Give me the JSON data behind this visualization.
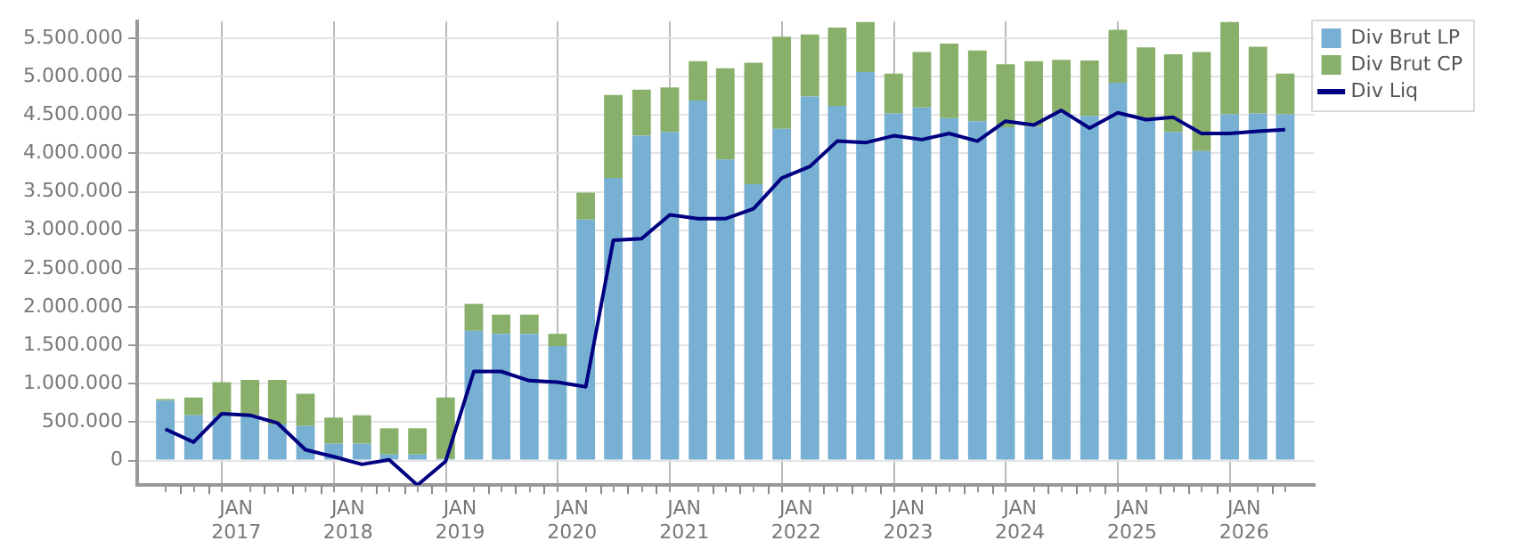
{
  "chart_data": {
    "type": "bar",
    "stacked": true,
    "grid": true,
    "legend": "top right",
    "x": [
      "2016-05-15",
      "2016-08-15",
      "2016-11-15",
      "2017-02-15",
      "2017-05-15",
      "2017-08-15",
      "2017-11-15",
      "2018-02-15",
      "2018-05-15",
      "2018-08-15",
      "2018-11-15",
      "2019-02-15",
      "2019-05-15",
      "2019-08-15",
      "2019-11-15",
      "2020-02-15",
      "2020-05-15",
      "2020-08-15",
      "2020-11-15",
      "2021-02-15",
      "2021-05-15",
      "2021-08-15",
      "2021-11-15",
      "2022-02-15",
      "2022-05-15",
      "2022-08-15",
      "2022-11-15",
      "2023-02-15",
      "2023-05-15",
      "2023-08-15",
      "2023-11-15",
      "2024-02-15",
      "2024-05-15",
      "2024-08-15",
      "2024-11-15",
      "2025-02-15",
      "2025-05-15",
      "2025-08-15",
      "2025-11-15",
      "2026-02-15",
      "2026-05-15"
    ],
    "series": [
      {
        "name": "Div Brut LP",
        "color": "#77b0d3",
        "values": [
          780000,
          590000,
          580000,
          590000,
          470000,
          450000,
          220000,
          220000,
          80000,
          80000,
          20000,
          1690000,
          1650000,
          1650000,
          1490000,
          3140000,
          3680000,
          4230000,
          4280000,
          4690000,
          3920000,
          3600000,
          4320000,
          4740000,
          4620000,
          5060000,
          4520000,
          4600000,
          4460000,
          4420000,
          4340000,
          4350000,
          4520000,
          4490000,
          4920000,
          4460000,
          4280000,
          4030000,
          4510000,
          4520000,
          4510000
        ]
      },
      {
        "name": "Div Brut CP",
        "color": "#88b06a",
        "values": [
          20000,
          230000,
          440000,
          460000,
          580000,
          420000,
          340000,
          370000,
          340000,
          340000,
          800000,
          350000,
          250000,
          250000,
          160000,
          350000,
          1080000,
          600000,
          580000,
          510000,
          1190000,
          1580000,
          1200000,
          810000,
          1020000,
          650000,
          520000,
          720000,
          970000,
          920000,
          820000,
          850000,
          700000,
          720000,
          690000,
          920000,
          1010000,
          1290000,
          1200000,
          870000,
          530000
        ]
      },
      {
        "name": "Div Liq",
        "type": "line",
        "color": "#000080",
        "values": [
          410000,
          240000,
          610000,
          590000,
          490000,
          140000,
          50000,
          -50000,
          10000,
          -320000,
          -10000,
          1160000,
          1160000,
          1040000,
          1020000,
          960000,
          2870000,
          2890000,
          3200000,
          3150000,
          3150000,
          3280000,
          3680000,
          3830000,
          4160000,
          4140000,
          4230000,
          4180000,
          4260000,
          4160000,
          4420000,
          4370000,
          4560000,
          4330000,
          4530000,
          4440000,
          4470000,
          4260000,
          4260000,
          4290000,
          4310000
        ]
      }
    ],
    "xlim": [
      "2016-04-01",
      "2026-07-01"
    ],
    "xticks": [
      {
        "value": "2016-07-01",
        "label": null
      },
      {
        "value": "2016-10-01",
        "label": null
      },
      {
        "value": "2017-01-01",
        "label": "JAN 2017"
      },
      {
        "value": "2017-04-01",
        "label": null
      },
      {
        "value": "2017-07-01",
        "label": null
      },
      {
        "value": "2017-10-01",
        "label": null
      },
      {
        "value": "2018-01-01",
        "label": "JAN 2018"
      },
      {
        "value": "2018-04-01",
        "label": null
      },
      {
        "value": "2018-07-01",
        "label": null
      },
      {
        "value": "2018-10-01",
        "label": null
      },
      {
        "value": "2019-01-01",
        "label": "JAN 2019"
      },
      {
        "value": "2019-04-01",
        "label": null
      },
      {
        "value": "2019-07-01",
        "label": null
      },
      {
        "value": "2019-10-01",
        "label": null
      },
      {
        "value": "2020-01-01",
        "label": "JAN 2020"
      },
      {
        "value": "2020-04-01",
        "label": null
      },
      {
        "value": "2020-07-01",
        "label": null
      },
      {
        "value": "2020-10-01",
        "label": null
      },
      {
        "value": "2021-01-01",
        "label": "JAN 2021"
      },
      {
        "value": "2021-04-01",
        "label": null
      },
      {
        "value": "2021-07-01",
        "label": null
      },
      {
        "value": "2021-10-01",
        "label": null
      },
      {
        "value": "2022-01-01",
        "label": "JAN 2022"
      },
      {
        "value": "2022-04-01",
        "label": null
      },
      {
        "value": "2022-07-01",
        "label": null
      },
      {
        "value": "2022-10-01",
        "label": null
      },
      {
        "value": "2023-01-01",
        "label": "JAN 2023"
      },
      {
        "value": "2023-04-01",
        "label": null
      },
      {
        "value": "2023-07-01",
        "label": null
      },
      {
        "value": "2023-10-01",
        "label": null
      },
      {
        "value": "2024-01-01",
        "label": "JAN 2024"
      },
      {
        "value": "2024-04-01",
        "label": null
      },
      {
        "value": "2024-07-01",
        "label": null
      },
      {
        "value": "2024-10-01",
        "label": null
      },
      {
        "value": "2025-01-01",
        "label": "JAN 2025"
      },
      {
        "value": "2025-04-01",
        "label": null
      },
      {
        "value": "2025-07-01",
        "label": null
      },
      {
        "value": "2025-10-01",
        "label": null
      },
      {
        "value": "2026-01-01",
        "label": "JAN 2026"
      },
      {
        "value": "2026-04-01",
        "label": null
      }
    ],
    "ylim": [
      -320000,
      5720000
    ],
    "yticks": [
      {
        "value": 0,
        "label": "0"
      },
      {
        "value": 500000,
        "label": "500.000"
      },
      {
        "value": 1000000,
        "label": "1.000.000"
      },
      {
        "value": 1500000,
        "label": "1.500.000"
      },
      {
        "value": 2000000,
        "label": "2.000.000"
      },
      {
        "value": 2500000,
        "label": "2.500.000"
      },
      {
        "value": 3000000,
        "label": "3.000.000"
      },
      {
        "value": 3500000,
        "label": "3.500.000"
      },
      {
        "value": 4000000,
        "label": "4.000.000"
      },
      {
        "value": 4500000,
        "label": "4.500.000"
      },
      {
        "value": 5000000,
        "label": "5.000.000"
      },
      {
        "value": 5500000,
        "label": "5.500.000"
      }
    ]
  }
}
